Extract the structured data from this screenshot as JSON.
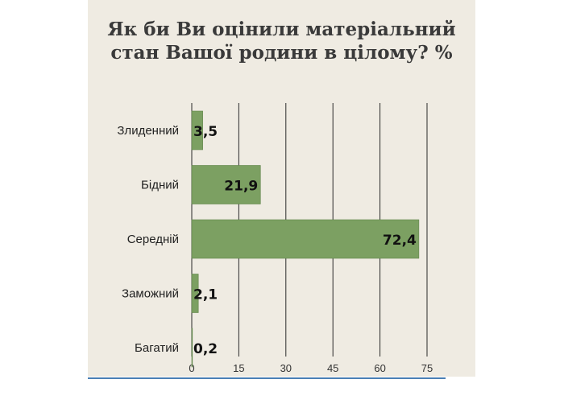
{
  "chart_data": {
    "type": "bar",
    "orientation": "horizontal",
    "title": "Як би Ви оцінили матеріальний стан Вашої родини в цілому? %",
    "title_lines": [
      "Як би Ви оцінили матеріальний",
      "стан Вашої родини в цілому? %"
    ],
    "categories": [
      "Злиденний",
      "Бідний",
      "Середній",
      "Заможний",
      "Багатий"
    ],
    "values": [
      3.5,
      21.9,
      72.4,
      2.1,
      0.2
    ],
    "value_labels": [
      "3,5",
      "21,9",
      "72,4",
      "2,1",
      "0,2"
    ],
    "xlim": [
      0,
      75
    ],
    "xticks": [
      0,
      15,
      30,
      45,
      60,
      75
    ],
    "xlabel": "",
    "ylabel": "",
    "grid": true,
    "colors": {
      "bar": "#7ca062",
      "bar_stroke": "#5f8449",
      "grid": "#2b2b2b",
      "panel": "#efebe2",
      "accent_line": "#4a7fb5"
    }
  }
}
